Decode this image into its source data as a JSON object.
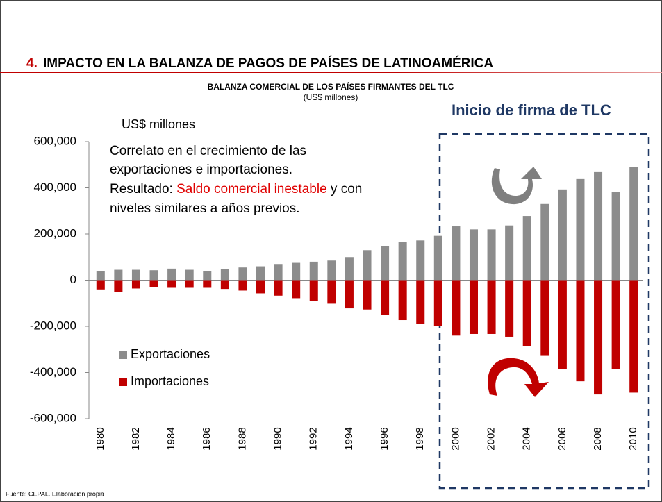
{
  "slide_title_number": "4.",
  "slide_title": "IMPACTO EN LA BALANZA DE PAGOS DE PAÍSES DE LATINOAMÉRICA",
  "footer": "Fuente: CEPAL. Elaboración propia",
  "chart_data": {
    "type": "bar",
    "title": "BALANZA COMERCIAL DE LOS PAÍSES FIRMANTES DEL TLC",
    "subtitle": "(US$ millones)",
    "y_label": "US$ millones",
    "annotation_box": "Inicio de firma de TLC",
    "annotation_lines": [
      "Correlato en el crecimiento de las",
      "exportaciones e importaciones."
    ],
    "annotation_result": [
      "Resultado: ",
      "Saldo comercial inestable",
      " y con"
    ],
    "annotation_last": "niveles similares a años previos.",
    "categories": [
      "1980",
      null,
      "1982",
      null,
      "1984",
      null,
      "1986",
      null,
      "1988",
      null,
      "1990",
      null,
      "1992",
      null,
      "1994",
      null,
      "1996",
      null,
      "1998",
      null,
      "2000",
      null,
      "2002",
      null,
      "2004",
      null,
      "2006",
      null,
      "2008",
      null,
      "2010"
    ],
    "series": [
      {
        "name": "Exportaciones",
        "color": "#8c8c8c",
        "values": [
          40000,
          45000,
          45000,
          43000,
          50000,
          45000,
          40000,
          48000,
          55000,
          60000,
          70000,
          75000,
          80000,
          85000,
          100000,
          130000,
          148000,
          165000,
          172000,
          192000,
          233000,
          220000,
          220000,
          237000,
          278000,
          330000,
          393000,
          438000,
          468000,
          382000,
          490000
        ]
      },
      {
        "name": "Importaciones",
        "color": "#c00000",
        "values": [
          -40000,
          -50000,
          -36000,
          -30000,
          -33000,
          -33000,
          -33000,
          -38000,
          -45000,
          -57000,
          -67000,
          -78000,
          -90000,
          -102000,
          -122000,
          -127000,
          -150000,
          -173000,
          -188000,
          -200000,
          -240000,
          -233000,
          -233000,
          -245000,
          -285000,
          -328000,
          -385000,
          -438000,
          -495000,
          -385000,
          -487000
        ]
      }
    ],
    "ylim": [
      -600000,
      600000
    ],
    "yticks": [
      {
        "value": -600000,
        "label": "-600,000"
      },
      {
        "value": -400000,
        "label": "-400,000"
      },
      {
        "value": -200000,
        "label": "-200,000"
      },
      0,
      {
        "value": 200000,
        "label": "200,000"
      },
      {
        "value": 400000,
        "label": "400,000"
      },
      {
        "value": 600000,
        "label": "600,000"
      }
    ]
  }
}
